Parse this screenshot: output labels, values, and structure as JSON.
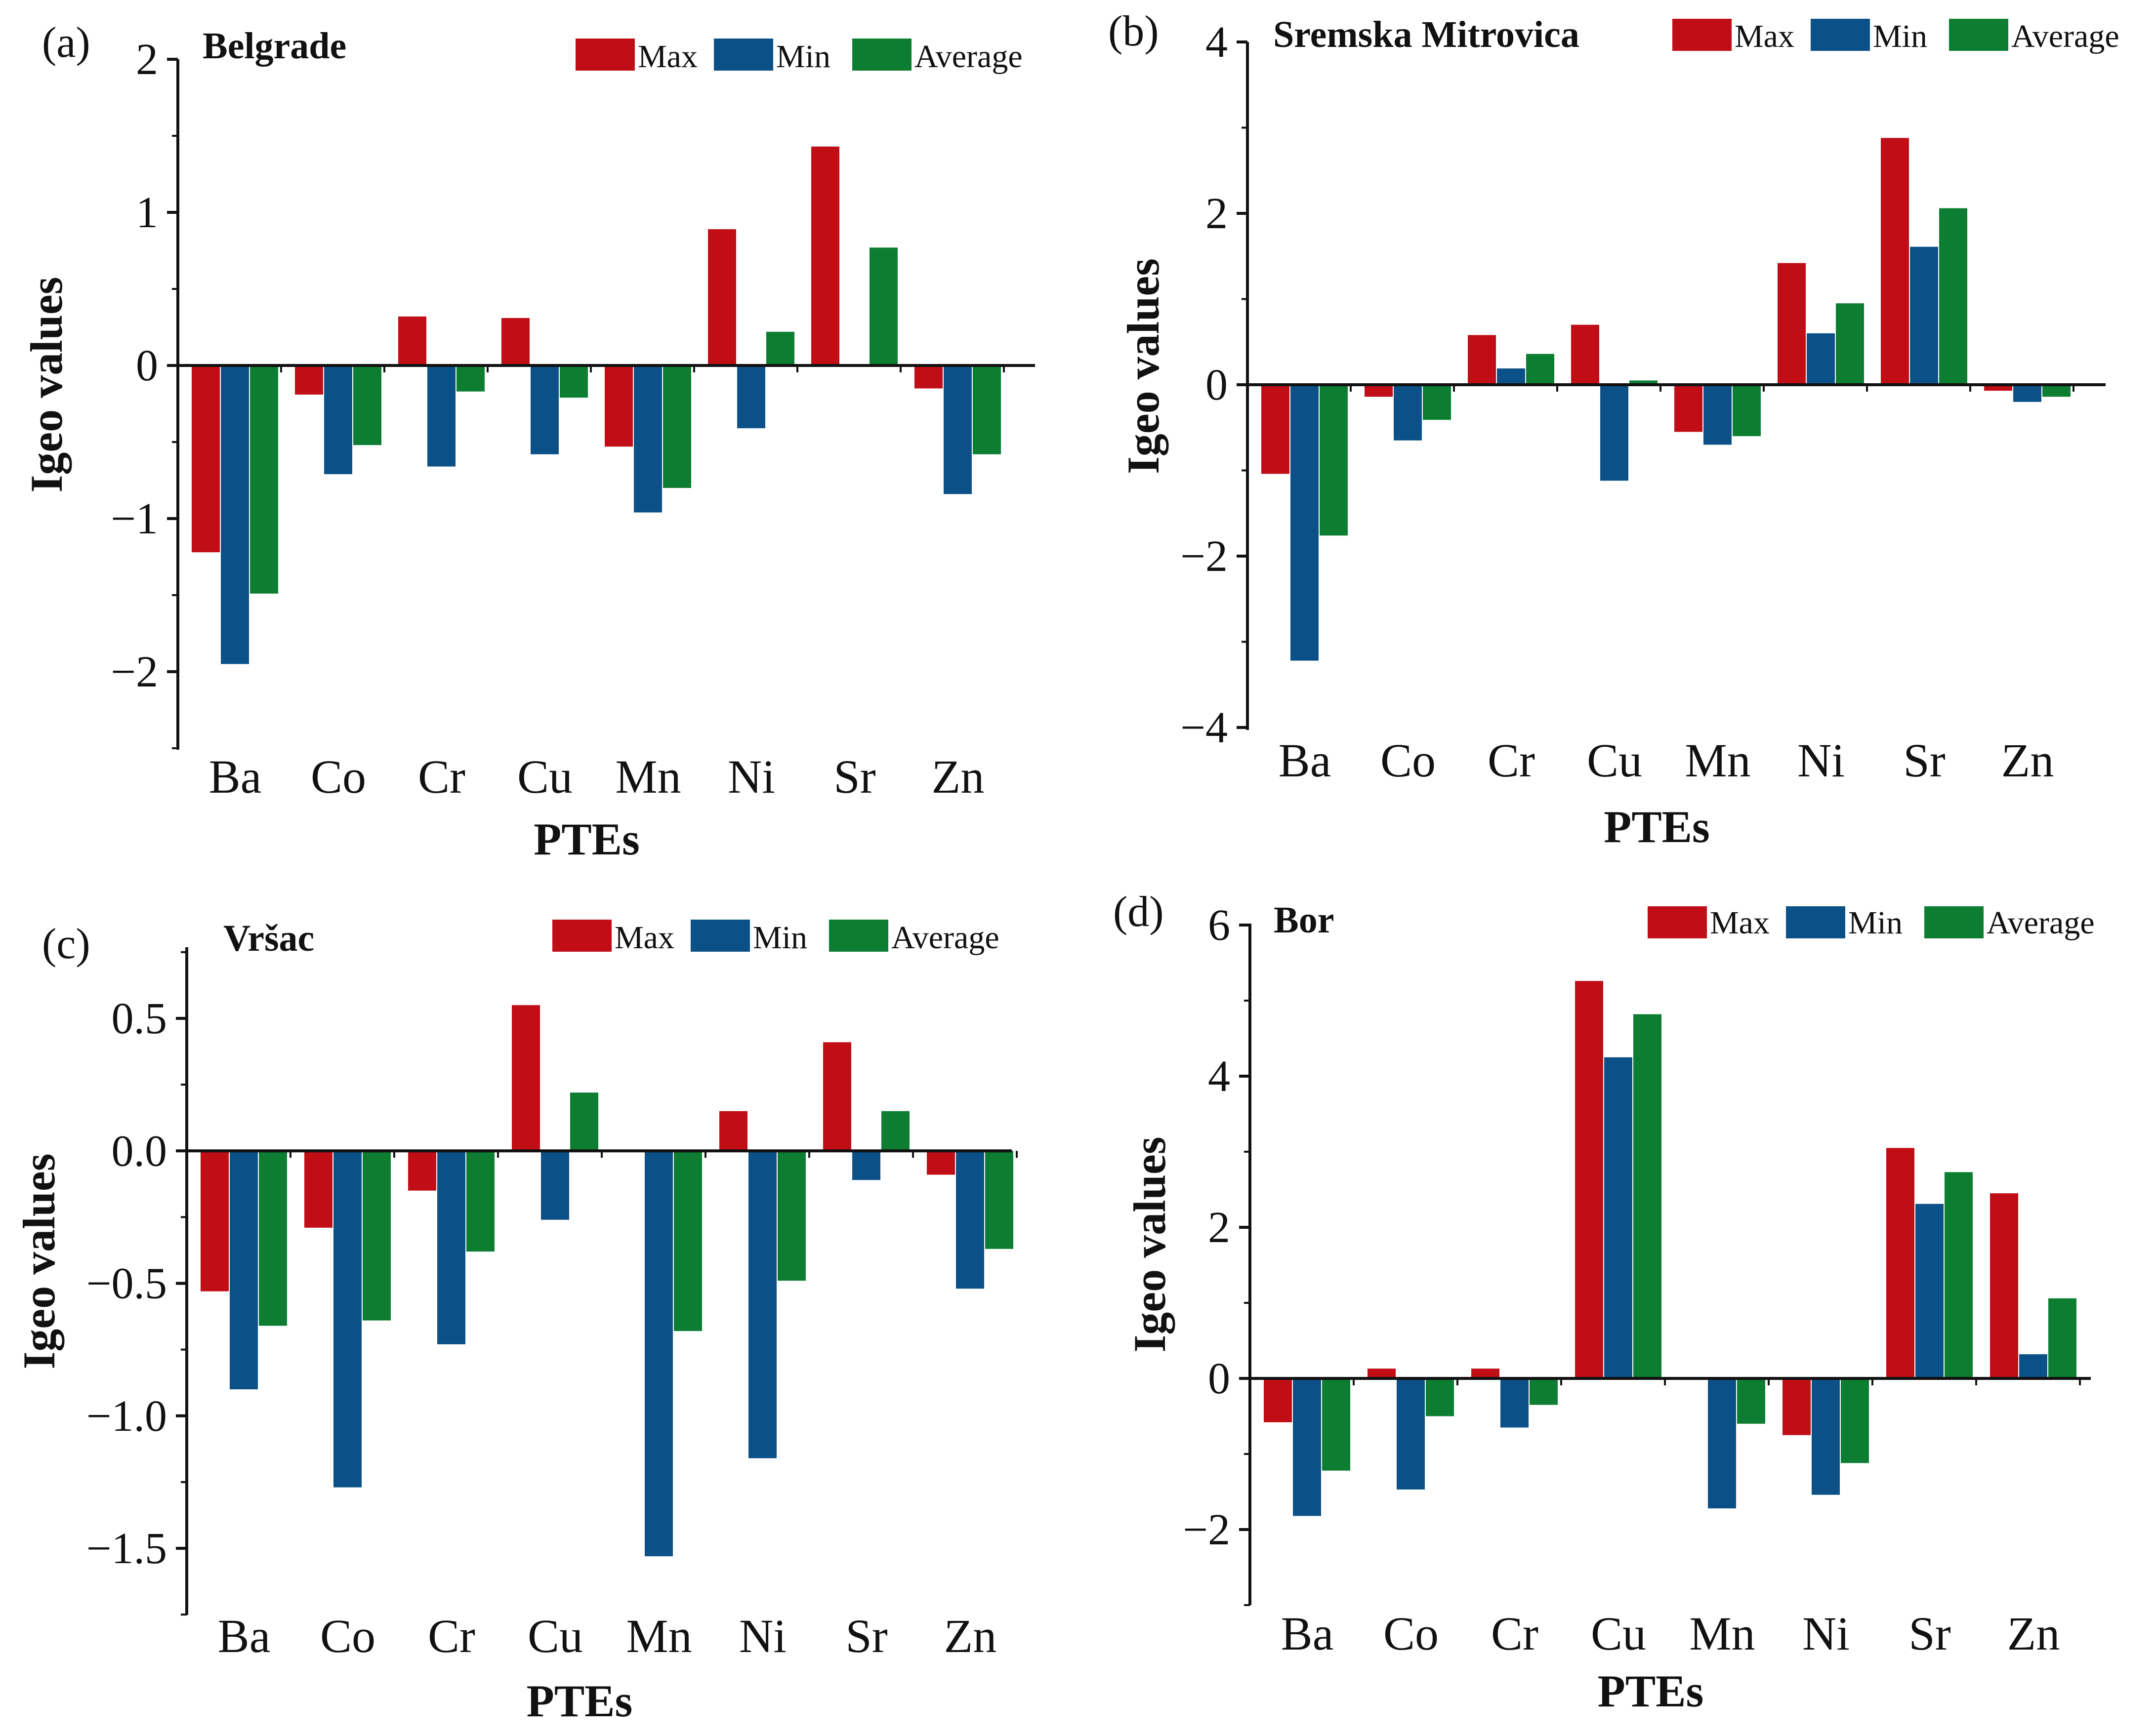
{
  "colors": {
    "Max": "#c00d16",
    "Min": "#0b5187",
    "Average": "#0c7d31"
  },
  "chart_data": [
    {
      "type": "bar",
      "panel": "(a)",
      "title": "Belgrade",
      "xlabel": "PTEs",
      "ylabel": "Igeo values",
      "categories": [
        "Ba",
        "Co",
        "Cr",
        "Cu",
        "Mn",
        "Ni",
        "Sr",
        "Zn"
      ],
      "ylim": [
        -2.5,
        2
      ],
      "yticks": [
        -2,
        -1,
        0,
        1,
        2
      ],
      "ytick_labels": [
        "−2",
        "−1",
        "0",
        "1",
        "2"
      ],
      "legend": [
        "Max",
        "Min",
        "Average"
      ],
      "legend_position": "top-right",
      "grid": false,
      "series": [
        {
          "name": "Max",
          "values": [
            -1.22,
            -0.19,
            0.32,
            0.31,
            -0.53,
            0.89,
            1.43,
            -0.15
          ]
        },
        {
          "name": "Min",
          "values": [
            -1.95,
            -0.71,
            -0.66,
            -0.58,
            -0.96,
            -0.41,
            0.0,
            -0.84
          ]
        },
        {
          "name": "Average",
          "values": [
            -1.49,
            -0.52,
            -0.17,
            -0.21,
            -0.8,
            0.22,
            0.77,
            -0.58
          ]
        }
      ]
    },
    {
      "type": "bar",
      "panel": "(b)",
      "title": "Sremska Mitrovica",
      "xlabel": "PTEs",
      "ylabel": "Igeo values",
      "categories": [
        "Ba",
        "Co",
        "Cr",
        "Cu",
        "Mn",
        "Ni",
        "Sr",
        "Zn"
      ],
      "ylim": [
        -4,
        4
      ],
      "yticks": [
        -4,
        -2,
        0,
        2,
        4
      ],
      "ytick_labels": [
        "−4",
        "−2",
        "0",
        "2",
        "4"
      ],
      "legend": [
        "Max",
        "Min",
        "Average"
      ],
      "legend_position": "top-right",
      "grid": false,
      "series": [
        {
          "name": "Max",
          "values": [
            -1.04,
            -0.14,
            0.58,
            0.7,
            -0.55,
            1.42,
            2.88,
            -0.07
          ]
        },
        {
          "name": "Min",
          "values": [
            -3.22,
            -0.65,
            0.19,
            -1.12,
            -0.7,
            0.6,
            1.61,
            -0.2
          ]
        },
        {
          "name": "Average",
          "values": [
            -1.76,
            -0.41,
            0.36,
            0.05,
            -0.6,
            0.95,
            2.06,
            -0.14
          ]
        }
      ]
    },
    {
      "type": "bar",
      "panel": "(c)",
      "title": "Vršac",
      "xlabel": "PTEs",
      "ylabel": "Igeo values",
      "categories": [
        "Ba",
        "Co",
        "Cr",
        "Cu",
        "Mn",
        "Ni",
        "Sr",
        "Zn"
      ],
      "ylim": [
        -1.75,
        0.75
      ],
      "yticks": [
        -1.5,
        -1.0,
        -0.5,
        0.0,
        0.5
      ],
      "ytick_labels": [
        "−1.5",
        "−1.0",
        "−0.5",
        "0.0",
        "0.5"
      ],
      "legend": [
        "Max",
        "Min",
        "Average"
      ],
      "legend_position": "top-right",
      "grid": false,
      "series": [
        {
          "name": "Max",
          "values": [
            -0.53,
            -0.29,
            -0.15,
            0.55,
            0.0,
            0.15,
            0.41,
            -0.09
          ]
        },
        {
          "name": "Min",
          "values": [
            -0.9,
            -1.27,
            -0.73,
            -0.26,
            -1.53,
            -1.16,
            -0.11,
            -0.52
          ]
        },
        {
          "name": "Average",
          "values": [
            -0.66,
            -0.64,
            -0.38,
            0.22,
            -0.68,
            -0.49,
            0.15,
            -0.37
          ]
        }
      ]
    },
    {
      "type": "bar",
      "panel": "(d)",
      "title": "Bor",
      "xlabel": "PTEs",
      "ylabel": "Igeo values",
      "categories": [
        "Ba",
        "Co",
        "Cr",
        "Cu",
        "Mn",
        "Ni",
        "Sr",
        "Zn"
      ],
      "ylim": [
        -3,
        6
      ],
      "yticks": [
        -2,
        0,
        2,
        4,
        6
      ],
      "ytick_labels": [
        "−2",
        "0",
        "2",
        "4",
        "6"
      ],
      "legend": [
        "Max",
        "Min",
        "Average"
      ],
      "legend_position": "top-right",
      "grid": false,
      "series": [
        {
          "name": "Max",
          "values": [
            -0.58,
            0.13,
            0.13,
            5.26,
            -0.02,
            -0.75,
            3.05,
            2.45
          ]
        },
        {
          "name": "Min",
          "values": [
            -1.82,
            -1.47,
            -0.65,
            4.25,
            -1.72,
            -1.54,
            2.31,
            0.32
          ]
        },
        {
          "name": "Average",
          "values": [
            -1.22,
            -0.5,
            -0.35,
            4.82,
            -0.6,
            -1.12,
            2.73,
            1.06
          ]
        }
      ]
    }
  ]
}
